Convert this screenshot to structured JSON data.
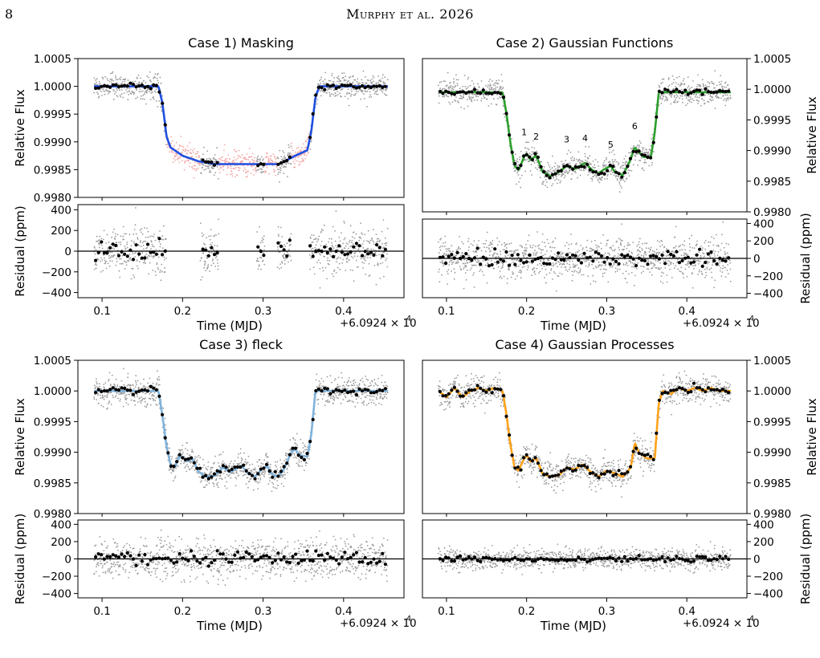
{
  "page": {
    "number": "8",
    "running_head": "Murphy et al. 2026"
  },
  "axes_text": {
    "flux_ylabel": "Relative Flux",
    "resid_ylabel": "Residual (ppm)",
    "xlabel": "Time (MJD)",
    "offset_label": "+6.0924 × 10",
    "offset_exp": "4",
    "flux_ticks": [
      "1.0005",
      "1.0000",
      "0.9995",
      "0.9990",
      "0.9985",
      "0.9980"
    ],
    "resid_ticks": [
      "400",
      "200",
      "0",
      "−200",
      "−400"
    ],
    "x_ticks": [
      "0.1",
      "0.2",
      "0.3",
      "0.4"
    ]
  },
  "colors": {
    "raw_points": "#9a9a9a",
    "binned_points": "#000000",
    "masked_points": "#f4a6a6",
    "case1_model": "#1f4fe0",
    "case2_model": "#2ca02c",
    "case3_model": "#7fb3dc",
    "case4_model": "#ffa31a"
  },
  "chart_data": [
    {
      "type": "line",
      "panel": "case1",
      "title": "Case 1) Masking",
      "x_offset": 60924,
      "xlim": [
        0.07,
        0.475
      ],
      "ylim_flux": [
        0.998,
        1.0005
      ],
      "ylim_resid": [
        -450,
        450
      ],
      "y_axis_side": "left",
      "masked_regions": [
        [
          0.18,
          0.222
        ],
        [
          0.245,
          0.292
        ],
        [
          0.302,
          0.318
        ],
        [
          0.335,
          0.358
        ]
      ],
      "series": [
        {
          "points": [
            [
              0.09,
              1.0
            ],
            [
              0.17,
              1.0
            ],
            [
              0.175,
              0.9997
            ],
            [
              0.18,
              0.9991
            ],
            [
              0.185,
              0.9989
            ],
            [
              0.2,
              0.99875
            ],
            [
              0.22,
              0.99865
            ],
            [
              0.24,
              0.9986
            ],
            [
              0.26,
              0.9986
            ],
            [
              0.32,
              0.9986
            ],
            [
              0.34,
              0.99875
            ],
            [
              0.355,
              0.99885
            ],
            [
              0.36,
              0.9992
            ],
            [
              0.365,
              0.9998
            ],
            [
              0.37,
              1.0
            ],
            [
              0.455,
              1.0
            ]
          ]
        }
      ]
    },
    {
      "type": "line",
      "panel": "case2",
      "title": "Case 2) Gaussian Functions",
      "x_offset": 60924,
      "xlim": [
        0.07,
        0.475
      ],
      "ylim_flux": [
        0.998,
        1.0005
      ],
      "ylim_resid": [
        -450,
        450
      ],
      "y_axis_side": "right",
      "annotations": [
        {
          "text": "1",
          "x": 0.197,
          "y": 0.99925
        },
        {
          "text": "2",
          "x": 0.212,
          "y": 0.99918
        },
        {
          "text": "3",
          "x": 0.25,
          "y": 0.99913
        },
        {
          "text": "4",
          "x": 0.273,
          "y": 0.99915
        },
        {
          "text": "5",
          "x": 0.305,
          "y": 0.99905
        },
        {
          "text": "6",
          "x": 0.335,
          "y": 0.99935
        }
      ],
      "series": [
        {
          "points": [
            [
              0.09,
              0.99995
            ],
            [
              0.17,
              0.99995
            ],
            [
              0.175,
              0.9996
            ],
            [
              0.18,
              0.9991
            ],
            [
              0.185,
              0.99875
            ],
            [
              0.19,
              0.99868
            ],
            [
              0.197,
              0.9989
            ],
            [
              0.2,
              0.99895
            ],
            [
              0.205,
              0.99885
            ],
            [
              0.212,
              0.99892
            ],
            [
              0.22,
              0.99865
            ],
            [
              0.23,
              0.99858
            ],
            [
              0.24,
              0.99865
            ],
            [
              0.25,
              0.99875
            ],
            [
              0.26,
              0.9987
            ],
            [
              0.273,
              0.9988
            ],
            [
              0.28,
              0.9987
            ],
            [
              0.29,
              0.99862
            ],
            [
              0.295,
              0.99868
            ],
            [
              0.305,
              0.99875
            ],
            [
              0.31,
              0.99865
            ],
            [
              0.32,
              0.9986
            ],
            [
              0.328,
              0.9988
            ],
            [
              0.335,
              0.99905
            ],
            [
              0.34,
              0.99898
            ],
            [
              0.345,
              0.9989
            ],
            [
              0.355,
              0.99888
            ],
            [
              0.36,
              0.9993
            ],
            [
              0.365,
              0.99995
            ],
            [
              0.455,
              0.99995
            ]
          ]
        }
      ]
    },
    {
      "type": "line",
      "panel": "case3",
      "title": "Case 3) fleck",
      "x_offset": 60924,
      "xlim": [
        0.07,
        0.475
      ],
      "ylim_flux": [
        0.998,
        1.0005
      ],
      "ylim_resid": [
        -450,
        450
      ],
      "y_axis_side": "left",
      "series": [
        {
          "points": [
            [
              0.09,
              1.0
            ],
            [
              0.17,
              1.0
            ],
            [
              0.175,
              0.9996
            ],
            [
              0.18,
              0.9991
            ],
            [
              0.185,
              0.9988
            ],
            [
              0.19,
              0.99875
            ],
            [
              0.197,
              0.99895
            ],
            [
              0.2,
              0.99892
            ],
            [
              0.205,
              0.99885
            ],
            [
              0.212,
              0.9989
            ],
            [
              0.22,
              0.99868
            ],
            [
              0.23,
              0.9986
            ],
            [
              0.24,
              0.99862
            ],
            [
              0.25,
              0.99875
            ],
            [
              0.26,
              0.99868
            ],
            [
              0.273,
              0.99878
            ],
            [
              0.28,
              0.99868
            ],
            [
              0.29,
              0.9986
            ],
            [
              0.298,
              0.99872
            ],
            [
              0.305,
              0.99878
            ],
            [
              0.31,
              0.99865
            ],
            [
              0.318,
              0.9986
            ],
            [
              0.325,
              0.9987
            ],
            [
              0.335,
              0.999
            ],
            [
              0.34,
              0.99905
            ],
            [
              0.345,
              0.99895
            ],
            [
              0.355,
              0.99893
            ],
            [
              0.36,
              0.9993
            ],
            [
              0.365,
              1.0
            ],
            [
              0.455,
              1.0
            ]
          ]
        }
      ]
    },
    {
      "type": "line",
      "panel": "case4",
      "title": "Case 4) Gaussian Processes",
      "x_offset": 60924,
      "xlim": [
        0.07,
        0.475
      ],
      "ylim_flux": [
        0.998,
        1.0005
      ],
      "ylim_resid": [
        -450,
        450
      ],
      "y_axis_side": "right",
      "series": [
        {
          "points": [
            [
              0.09,
              1.0
            ],
            [
              0.1,
              0.9999
            ],
            [
              0.11,
              1.00005
            ],
            [
              0.12,
              0.9999
            ],
            [
              0.13,
              1.0
            ],
            [
              0.14,
              1.00005
            ],
            [
              0.15,
              1.0
            ],
            [
              0.16,
              1.00005
            ],
            [
              0.17,
              1.0
            ],
            [
              0.175,
              0.9996
            ],
            [
              0.18,
              0.9991
            ],
            [
              0.185,
              0.99875
            ],
            [
              0.19,
              0.9987
            ],
            [
              0.197,
              0.9989
            ],
            [
              0.2,
              0.99895
            ],
            [
              0.205,
              0.99885
            ],
            [
              0.212,
              0.9989
            ],
            [
              0.22,
              0.99865
            ],
            [
              0.23,
              0.9986
            ],
            [
              0.24,
              0.99862
            ],
            [
              0.25,
              0.99875
            ],
            [
              0.26,
              0.99872
            ],
            [
              0.27,
              0.9988
            ],
            [
              0.28,
              0.99868
            ],
            [
              0.29,
              0.9986
            ],
            [
              0.3,
              0.9987
            ],
            [
              0.31,
              0.99866
            ],
            [
              0.32,
              0.9986
            ],
            [
              0.33,
              0.99875
            ],
            [
              0.335,
              0.99915
            ],
            [
              0.34,
              0.999
            ],
            [
              0.35,
              0.9989
            ],
            [
              0.36,
              0.9989
            ],
            [
              0.365,
              0.9998
            ],
            [
              0.37,
              1.0
            ],
            [
              0.38,
              0.99995
            ],
            [
              0.39,
              1.00005
            ],
            [
              0.4,
              1.0
            ],
            [
              0.41,
              1.00005
            ],
            [
              0.42,
              1.0
            ],
            [
              0.43,
              1.00005
            ],
            [
              0.44,
              1.0
            ],
            [
              0.455,
              1.0
            ]
          ]
        }
      ]
    }
  ]
}
